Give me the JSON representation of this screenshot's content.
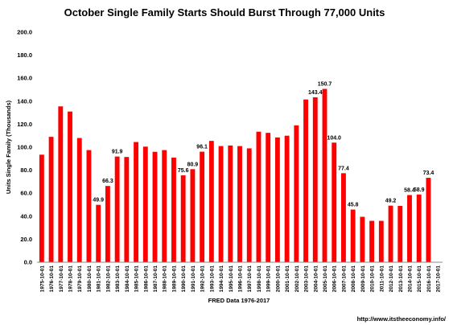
{
  "chart_data": {
    "type": "bar",
    "title": "October Single Family Starts Should Burst Through 77,000 Units",
    "xlabel": "FRED  Data 1976-2017",
    "ylabel": "Units Single Family (Thousands)",
    "source_note": "http://www.itstheeconomy.info/",
    "ylim": [
      0,
      200
    ],
    "yticks": [
      "0.0",
      "20.0",
      "40.0",
      "60.0",
      "80.0",
      "100.0",
      "120.0",
      "140.0",
      "160.0",
      "180.0",
      "200.0"
    ],
    "grid": false,
    "bar_color": "#ff0000",
    "categories": [
      "1975-10-01",
      "1976-10-01",
      "1977-10-01",
      "1978-10-01",
      "1979-10-01",
      "1980-10-01",
      "1981-10-01",
      "1982-10-01",
      "1983-10-01",
      "1984-10-01",
      "1985-10-01",
      "1986-10-01",
      "1987-10-01",
      "1988-10-01",
      "1989-10-01",
      "1990-10-01",
      "1991-10-01",
      "1992-10-01",
      "1993-10-01",
      "1994-10-01",
      "1995-10-01",
      "1996-10-01",
      "1997-10-01",
      "1998-10-01",
      "1999-10-01",
      "2000-10-01",
      "2001-10-01",
      "2002-10-01",
      "2003-10-01",
      "2004-10-01",
      "2005-10-01",
      "2006-10-01",
      "2007-10-01",
      "2008-10-01",
      "2009-10-01",
      "2010-10-01",
      "2011-10-01",
      "2012-10-01",
      "2013-10-01",
      "2014-10-01",
      "2015-10-01",
      "2016-10-01",
      "2017-10-01"
    ],
    "values": [
      93.5,
      109,
      135.5,
      131,
      108,
      97.5,
      49.9,
      66.3,
      91.9,
      91.5,
      104.5,
      100.5,
      96,
      97.5,
      91,
      75.6,
      80.9,
      96.1,
      105.5,
      101,
      101.5,
      101,
      99,
      113.5,
      112.5,
      108.5,
      110,
      119,
      141.5,
      143.4,
      150.7,
      104.0,
      77.4,
      45.8,
      39.5,
      36,
      36,
      49.2,
      49,
      58.4,
      58.9,
      73.4,
      0
    ],
    "data_labels": [
      {
        "index": 6,
        "text": "49.9"
      },
      {
        "index": 7,
        "text": "66.3"
      },
      {
        "index": 8,
        "text": "91.9"
      },
      {
        "index": 15,
        "text": "75.6"
      },
      {
        "index": 16,
        "text": "80.9"
      },
      {
        "index": 17,
        "text": "96.1"
      },
      {
        "index": 29,
        "text": "143.4"
      },
      {
        "index": 30,
        "text": "150.7"
      },
      {
        "index": 31,
        "text": "104.0"
      },
      {
        "index": 32,
        "text": "77.4"
      },
      {
        "index": 33,
        "text": "45.8"
      },
      {
        "index": 37,
        "text": "49.2"
      },
      {
        "index": 39,
        "text": "58.4"
      },
      {
        "index": 40,
        "text": "58.9"
      },
      {
        "index": 41,
        "text": "73.4"
      }
    ]
  }
}
